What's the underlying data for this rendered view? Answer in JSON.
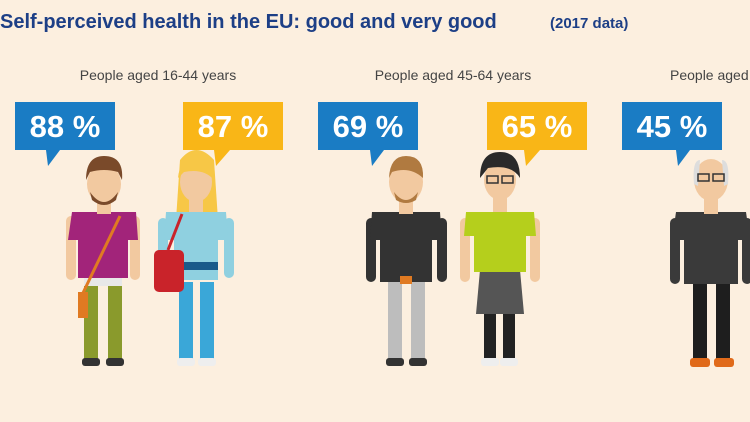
{
  "title": "Self-perceived health in the EU: good and very good",
  "subtitle": "(2017 data)",
  "groups": [
    {
      "label": "People aged 16-44 years",
      "bubbles": [
        "88 %",
        "87 %"
      ]
    },
    {
      "label": "People aged 45-64 years",
      "bubbles": [
        "69 %",
        "65 %"
      ]
    },
    {
      "label": "People aged",
      "bubbles": [
        "45 %"
      ]
    }
  ]
}
